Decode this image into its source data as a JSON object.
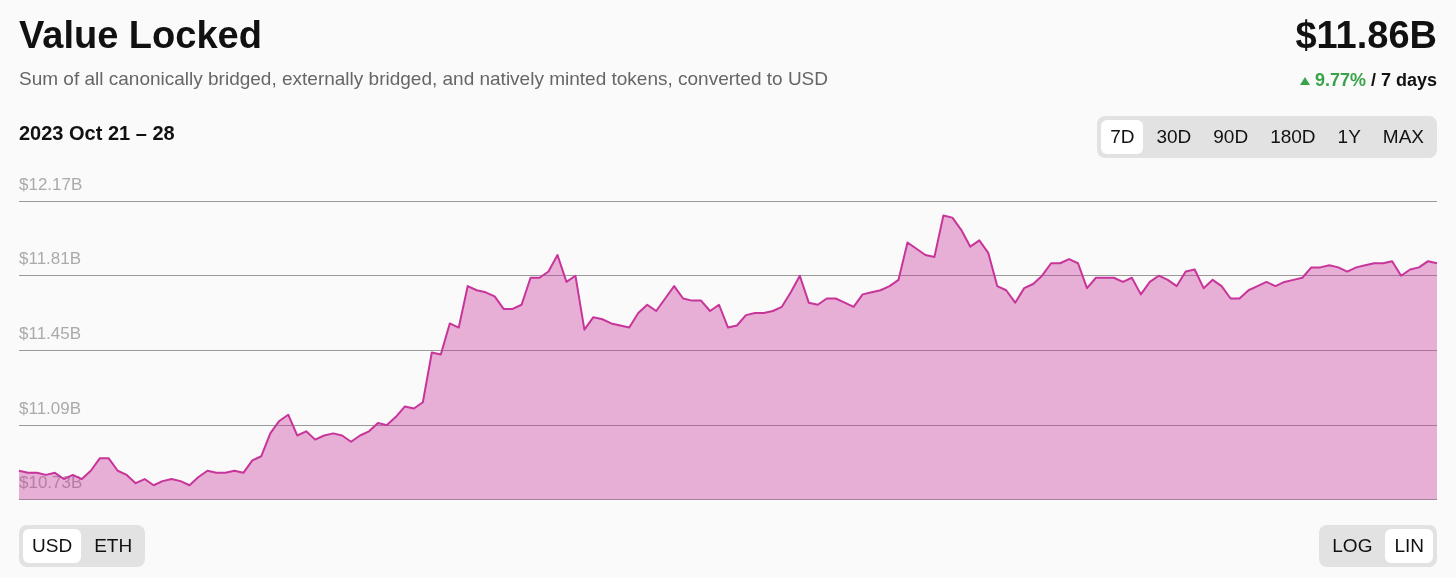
{
  "chart_data": {
    "type": "area",
    "title": "Value Locked",
    "subtitle": "Sum of all canonically bridged, externally bridged, and natively minted tokens, converted to USD",
    "annotations": [
      "$11.86B",
      "9.77%",
      "/ 7 days",
      "2023 Oct 21 – 28",
      "7D",
      "30D",
      "90D",
      "180D",
      "1Y",
      "MAX",
      "USD",
      "ETH",
      "LOG",
      "LIN"
    ],
    "categories": [
      null,
      null,
      null,
      null,
      null,
      null,
      null,
      null,
      null,
      null,
      null,
      null,
      null,
      null,
      null,
      null,
      null,
      null,
      null,
      null,
      null,
      null,
      null,
      null,
      null,
      null,
      null,
      null,
      null,
      null,
      null,
      null,
      null,
      null,
      null,
      null,
      null,
      null,
      null,
      null,
      null,
      null,
      null,
      null,
      null,
      null,
      null,
      null,
      null,
      null,
      null,
      null,
      null,
      null,
      null,
      null,
      null,
      null,
      null,
      null,
      null,
      null,
      null,
      null,
      null,
      null,
      null,
      null,
      null,
      null,
      null,
      null,
      null,
      null,
      null,
      null,
      null,
      null,
      null,
      null,
      null,
      null,
      null,
      null,
      null,
      null,
      null,
      null,
      null,
      null,
      null,
      null,
      null,
      null,
      null,
      null,
      null,
      null,
      null,
      null,
      null,
      null,
      null,
      null,
      null,
      null,
      null,
      null,
      null,
      null,
      null,
      null,
      null,
      null,
      null,
      null,
      null,
      null,
      null,
      null,
      null,
      null,
      null,
      null,
      null,
      null,
      null,
      null,
      null,
      null,
      null,
      null,
      null,
      null,
      null,
      null,
      null,
      null,
      null,
      null,
      null,
      null,
      null,
      null,
      null,
      null,
      null,
      null,
      null,
      null,
      null,
      null,
      null,
      null,
      null,
      null,
      null,
      null,
      null
    ],
    "series": [
      {
        "color": "#c8359a",
        "values": [
          10.87,
          10.86,
          10.86,
          10.85,
          10.86,
          10.83,
          10.85,
          10.83,
          10.87,
          10.93,
          10.93,
          10.87,
          10.85,
          10.81,
          10.83,
          10.8,
          10.82,
          10.83,
          10.82,
          10.8,
          10.84,
          10.87,
          10.86,
          10.86,
          10.87,
          10.86,
          10.92,
          10.94,
          11.05,
          11.11,
          11.14,
          11.04,
          11.06,
          11.02,
          11.04,
          11.05,
          11.04,
          11.01,
          11.04,
          11.06,
          11.1,
          11.09,
          11.13,
          11.18,
          11.17,
          11.2,
          11.44,
          11.43,
          11.58,
          11.56,
          11.76,
          11.74,
          11.73,
          11.71,
          11.65,
          11.65,
          11.67,
          11.8,
          11.8,
          11.83,
          11.91,
          11.78,
          11.81,
          11.55,
          11.61,
          11.6,
          11.58,
          11.57,
          11.56,
          11.63,
          11.67,
          11.64,
          11.7,
          11.76,
          11.7,
          11.69,
          11.69,
          11.64,
          11.67,
          11.56,
          11.57,
          11.62,
          11.63,
          11.63,
          11.64,
          11.66,
          11.73,
          11.81,
          11.68,
          11.67,
          11.7,
          11.7,
          11.68,
          11.66,
          11.72,
          11.73,
          11.74,
          11.76,
          11.79,
          11.97,
          11.94,
          11.91,
          11.9,
          12.1,
          12.09,
          12.03,
          11.95,
          11.98,
          11.92,
          11.76,
          11.74,
          11.68,
          11.75,
          11.77,
          11.81,
          11.87,
          11.87,
          11.89,
          11.87,
          11.75,
          11.8,
          11.8,
          11.8,
          11.78,
          11.8,
          11.72,
          11.78,
          11.81,
          11.79,
          11.76,
          11.83,
          11.84,
          11.75,
          11.79,
          11.76,
          11.7,
          11.7,
          11.74,
          11.76,
          11.78,
          11.76,
          11.78,
          11.79,
          11.8,
          11.85,
          11.85,
          11.86,
          11.85,
          11.83,
          11.85,
          11.86,
          11.87,
          11.87,
          11.88,
          11.81,
          11.84,
          11.85,
          11.88,
          11.87
        ]
      }
    ],
    "ylim": [
      10.73,
      12.17
    ],
    "yticks": [
      {
        "value": 10.73,
        "label": "$10.73B"
      },
      {
        "value": 11.09,
        "label": "$11.09B"
      },
      {
        "value": 11.45,
        "label": "$11.45B"
      },
      {
        "value": 11.81,
        "label": "$11.81B"
      },
      {
        "value": 12.17,
        "label": "$12.17B"
      }
    ],
    "grid": "y",
    "legend": false,
    "marker": "none",
    "line_style": "solid",
    "tick_labels": "y"
  }
}
